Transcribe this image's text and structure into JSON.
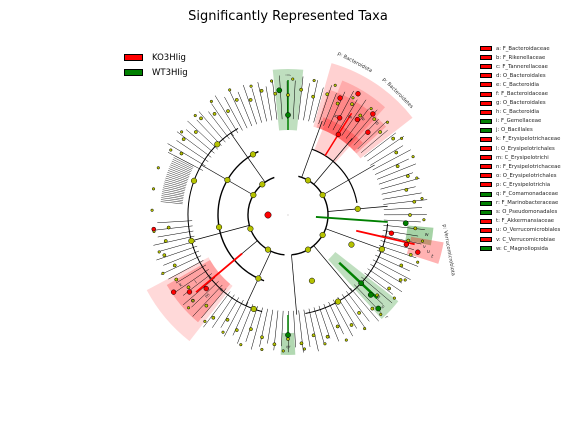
{
  "title": "Significantly Represented Taxa",
  "colors": {
    "KO": "#ff0000",
    "WT": "#008000",
    "node": "#b5c200"
  },
  "groups": [
    {
      "name": "KO3HIig",
      "color": "#ff0000"
    },
    {
      "name": "WT3HIig",
      "color": "#008000"
    }
  ],
  "taxa_legend": [
    {
      "label": "a: F_Bacteroidaceae",
      "group": "KO"
    },
    {
      "label": "b: F_Rikenellaceae",
      "group": "KO"
    },
    {
      "label": "c: F_Tannerellaceae",
      "group": "KO"
    },
    {
      "label": "d: O_Bacteroidales",
      "group": "KO"
    },
    {
      "label": "e: C_Bacteroidia",
      "group": "KO"
    },
    {
      "label": "f: F_Bacteroidaceae",
      "group": "KO"
    },
    {
      "label": "g: O_Bacteroidales",
      "group": "KO"
    },
    {
      "label": "h: C_Bacteroidia",
      "group": "KO"
    },
    {
      "label": "i: F_Gemellaceae",
      "group": "WT"
    },
    {
      "label": "j: O_Bacillales",
      "group": "WT"
    },
    {
      "label": "k: F_Erysipelotrichaceae",
      "group": "KO"
    },
    {
      "label": "l: O_Erysipelotrichales",
      "group": "KO"
    },
    {
      "label": "m: C_Erysipelotrichi",
      "group": "KO"
    },
    {
      "label": "n: F_Erysipelotrichaceae",
      "group": "KO"
    },
    {
      "label": "o: O_Erysipelotrichales",
      "group": "KO"
    },
    {
      "label": "p: C_Erysipelotrichia",
      "group": "KO"
    },
    {
      "label": "q: F_Comamonadaceae",
      "group": "WT"
    },
    {
      "label": "r: F_Marinobacteraceae",
      "group": "WT"
    },
    {
      "label": "s: O_Pseudomonadales",
      "group": "WT"
    },
    {
      "label": "t: F_Akkermansiaceae",
      "group": "KO"
    },
    {
      "label": "u: O_Verrucomicrobiales",
      "group": "KO"
    },
    {
      "label": "v: C_Verrucomicrobiae",
      "group": "KO"
    },
    {
      "label": "w: C_Magnoliopsida",
      "group": "WT"
    }
  ],
  "phylum_labels": {
    "p_bacteroidota_1": "p: Bacteroidota",
    "p_bacteroidetes": "p: Bacteroidetes",
    "p_verrucomicrobiota": "p: Verrucomicrobiota"
  },
  "clade_letters": {
    "top_bacteroid": [
      "h",
      "g",
      "e",
      "d"
    ],
    "top_green": "j",
    "right_green": "w",
    "right_red": [
      "v",
      "u",
      "t"
    ],
    "lower_green": [
      "q",
      "s",
      "r"
    ],
    "bottom_green": "b",
    "left_red": [
      "p",
      "m",
      "o",
      "n",
      "l",
      "k"
    ]
  }
}
